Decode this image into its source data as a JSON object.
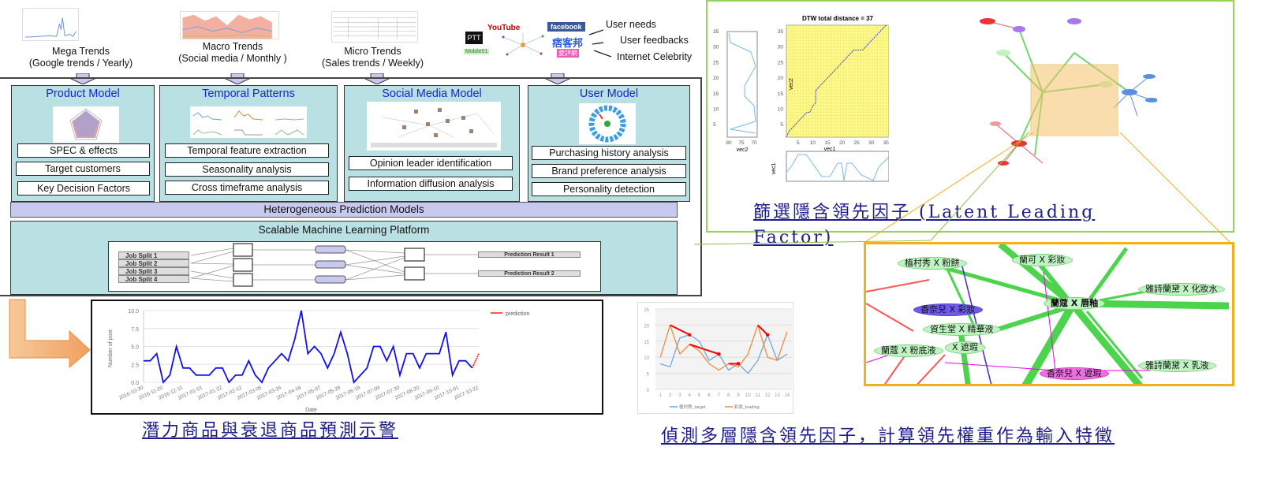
{
  "sources": [
    {
      "title": "Mega Trends",
      "subtitle": "(Google trends / Yearly)"
    },
    {
      "title": "Macro Trends",
      "subtitle": "(Social media / Monthly )"
    },
    {
      "title": "Micro Trends",
      "subtitle": "(Sales trends / Weekly)"
    }
  ],
  "social_sources": {
    "logos": [
      "PTT",
      "YouTube",
      "facebook",
      "痞客邦",
      "Mobile01",
      "愛評網"
    ],
    "labels": [
      "User needs",
      "User feedbacks",
      "Internet Celebrity"
    ]
  },
  "panels": [
    {
      "title": "Product Model",
      "items": [
        "SPEC & effects",
        "Target customers",
        "Key Decision Factors"
      ]
    },
    {
      "title": "Temporal Patterns",
      "items": [
        "Temporal feature extraction",
        "Seasonality analysis",
        "Cross timeframe analysis"
      ]
    },
    {
      "title": "Social Media Model",
      "items": [
        "Opinion leader identification",
        "Information diffusion analysis"
      ]
    },
    {
      "title": "User Model",
      "items": [
        "Purchasing history analysis",
        "Brand preference analysis",
        "Personality detection"
      ]
    }
  ],
  "prediction_models": "Heterogeneous Prediction Models",
  "platform": {
    "title": "Scalable Machine Learning Platform",
    "jobs": [
      "Job Split 1",
      "Job Split 2",
      "Job Split 3",
      "Job Split 4"
    ],
    "results": [
      "Prediction Result 1",
      "Prediction Result 2"
    ]
  },
  "dtw": {
    "title": "DTW total distance = 37",
    "xlabel": "vec1",
    "ylabel": "vec2",
    "side_xlabel": "vec2",
    "bottom_ylabel": "vec1"
  },
  "network_caption": "篩選隱含領先因子 (Latent Leading Factor)",
  "network_nodes": [
    "植村秀 X 粉餅",
    "蘭可 X 彩妝",
    "雅詩蘭黛 X 化妝水",
    "蘭蔻 X 唇釉",
    "香奈兒 X 彩妝",
    "資生堂 X 精華液",
    "蘭蔻 X 粉底液",
    "X 遮瑕",
    "雅詩蘭黛 X 乳液",
    "香奈兒 X 遮瑕"
  ],
  "chart_data": [
    {
      "type": "line",
      "xlabel": "Date",
      "ylabel": "Number of post",
      "ylim": [
        0,
        10
      ],
      "yticks": [
        "0.0",
        "2.5",
        "5.0",
        "7.5",
        "10.0"
      ],
      "xticks": [
        "2016-10-30",
        "2016-11-20",
        "2016-12-11",
        "2017-01-01",
        "2017-01-22",
        "2017-02-12",
        "2017-03-05",
        "2017-03-26",
        "2017-04-16",
        "2017-05-07",
        "2017-05-28",
        "2017-06-18",
        "2017-07-09",
        "2017-07-30",
        "2017-08-20",
        "2017-09-10",
        "2017-10-01",
        "2017-10-22"
      ],
      "grid": true,
      "legend": "top-right",
      "series": [
        {
          "values": [
            3,
            3,
            4,
            0,
            1,
            5,
            2,
            2,
            1,
            1,
            1,
            2,
            2,
            0,
            1,
            1,
            3,
            1,
            0,
            2,
            3,
            4,
            3,
            6,
            10,
            4,
            5,
            4,
            2,
            4,
            7,
            4,
            0,
            1,
            2,
            5,
            5,
            3,
            5,
            1,
            4,
            4,
            2,
            4,
            4,
            4,
            7,
            1,
            3,
            3,
            2
          ],
          "color": "#1010f0"
        },
        {
          "name": "prediction",
          "values": [
            2,
            4
          ],
          "color": "#ff2020",
          "start_index": 50
        }
      ]
    },
    {
      "type": "line",
      "x": [
        1,
        2,
        3,
        4,
        5,
        6,
        7,
        8,
        9,
        10,
        11,
        12,
        13,
        14
      ],
      "ylim": [
        0,
        25
      ],
      "yticks": [
        "0",
        "5",
        "10",
        "15",
        "20",
        "25"
      ],
      "grid": true,
      "legend": "bottom",
      "series": [
        {
          "name": "植村秀_target",
          "values": [
            8,
            7,
            16,
            17,
            15,
            9,
            11,
            6,
            8,
            5,
            9,
            17,
            9,
            11
          ],
          "color": "#6fa8dc"
        },
        {
          "name": "彩妝_leading",
          "values": [
            10,
            20,
            11,
            14,
            12,
            8,
            6,
            8,
            7,
            11,
            20,
            10,
            9,
            18
          ],
          "color": "#ed8a45"
        }
      ]
    }
  ],
  "alert_caption": "潛力商品與衰退商品預測示警",
  "leading_caption": "偵測多層隱含領先因子，計算領先權重作為輸入特徵",
  "colors": {
    "panel": "#b9e0e2",
    "title_blue": "#1a22e0",
    "bar": "#c9c8ee",
    "caption": "#1d1d8a",
    "frame_green": "#9ad15a",
    "frame_orange": "#f2b01e"
  }
}
